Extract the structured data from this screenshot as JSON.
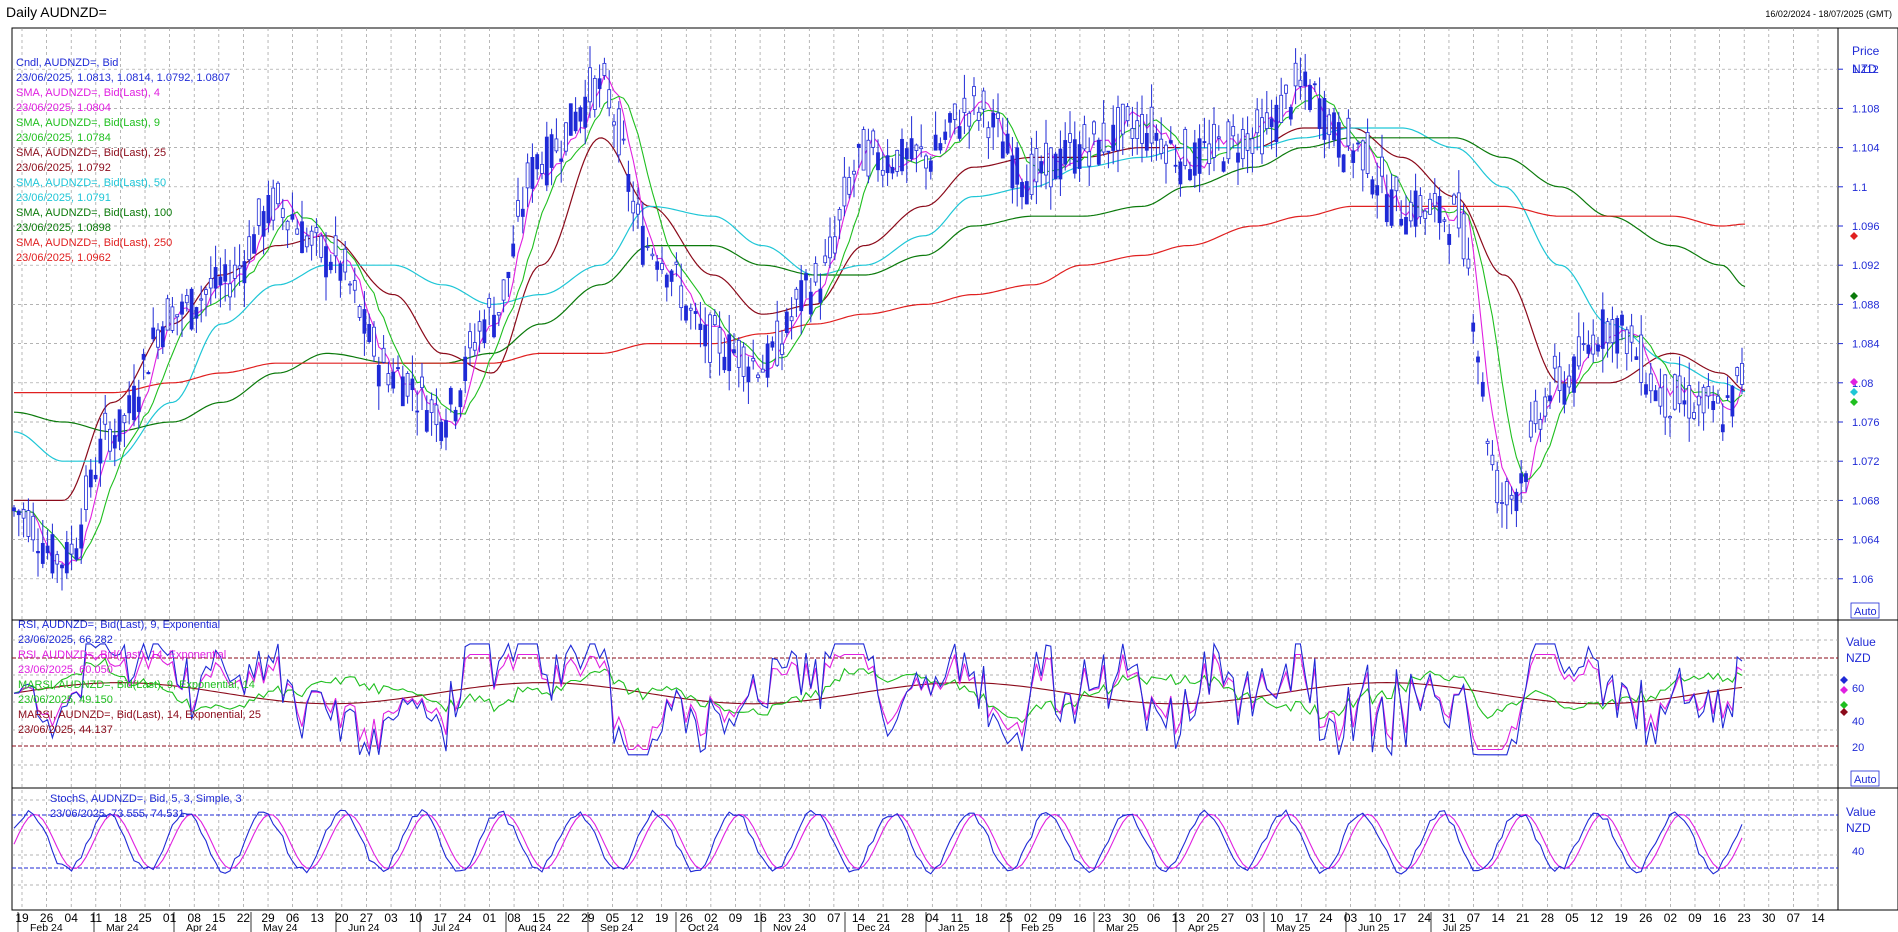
{
  "header": {
    "title": "Daily AUDNZD=",
    "range": "16/02/2024 - 18/07/2025 (GMT)"
  },
  "colors": {
    "candle": "#1f2ad6",
    "sma4": "#e020e0",
    "sma9": "#1fbf1f",
    "sma25": "#8b0a1a",
    "sma50": "#1fc6d6",
    "sma100": "#0b7a0b",
    "sma250": "#e02020",
    "grid": "#9a9a9a",
    "axis_text": "#1f2ad6"
  },
  "price_panel": {
    "axis_title_1": "Price",
    "axis_title_2": "NZD",
    "auto": "Auto",
    "ticks": [
      "1.112",
      "1.108",
      "1.104",
      "1.1",
      "1.096",
      "1.092",
      "1.088",
      "1.084",
      "1.08",
      "1.076",
      "1.072",
      "1.068",
      "1.064",
      "1.06"
    ],
    "legend": [
      {
        "t1": "Cndl, AUDNZD=, Bid",
        "t2": "23/06/2025, 1.0813, 1.0814, 1.0792, 1.0807"
      },
      {
        "t1": "SMA, AUDNZD=, Bid(Last), 4",
        "t2": "23/06/2025, 1.0804"
      },
      {
        "t1": "SMA, AUDNZD=, Bid(Last), 9",
        "t2": "23/06/2025, 1.0784"
      },
      {
        "t1": "SMA, AUDNZD=, Bid(Last), 25",
        "t2": "23/06/2025, 1.0792"
      },
      {
        "t1": "SMA, AUDNZD=, Bid(Last), 50",
        "t2": "23/06/2025, 1.0791"
      },
      {
        "t1": "SMA, AUDNZD=, Bid(Last), 100",
        "t2": "23/06/2025, 1.0898"
      },
      {
        "t1": "SMA, AUDNZD=, Bid(Last), 250",
        "t2": "23/06/2025, 1.0962"
      }
    ]
  },
  "rsi_panel": {
    "axis_title_1": "Value",
    "axis_title_2": "NZD",
    "auto": "Auto",
    "ticks": [
      "60",
      "40",
      "20"
    ],
    "legend": [
      {
        "t1": "RSI, AUDNZD=, Bid(Last), 9, Exponential",
        "t2": "23/06/2025, 66.282"
      },
      {
        "t1": "RSI, AUDNZD=, Bid(Last), 14, Exponential",
        "t2": "23/06/2025, 60.050"
      },
      {
        "t1": "MARSI, AUDNZD=, Bid(Last), 9, Exponential, 14",
        "t2": "23/06/2025, 49.150"
      },
      {
        "t1": "MARSI, AUDNZD=, Bid(Last), 14, Exponential, 25",
        "t2": "23/06/2025, 44.137"
      }
    ]
  },
  "stoch_panel": {
    "axis_title_1": "Value",
    "axis_title_2": "NZD",
    "ticks": [
      "40"
    ],
    "legend": [
      {
        "t1": "StochS, AUDNZD=, Bid,  5, 3, Simple, 3",
        "t2": "23/06/2025, 73.555, 74.531"
      }
    ]
  },
  "x_axis": {
    "day_labels": [
      "19",
      "26",
      "04",
      "11",
      "18",
      "25",
      "01",
      "08",
      "15",
      "22",
      "29",
      "06",
      "13",
      "20",
      "27",
      "03",
      "10",
      "17",
      "24",
      "01",
      "08",
      "15",
      "22",
      "29",
      "05",
      "12",
      "19",
      "26",
      "02",
      "09",
      "16",
      "23",
      "30",
      "07",
      "14",
      "21",
      "28",
      "04",
      "11",
      "18",
      "25",
      "02",
      "09",
      "16",
      "23",
      "30",
      "06",
      "13",
      "20",
      "27",
      "03",
      "10",
      "17",
      "24",
      "03",
      "10",
      "17",
      "24",
      "31",
      "07",
      "14",
      "21",
      "28",
      "05",
      "12",
      "19",
      "26",
      "02",
      "09",
      "16",
      "23",
      "30",
      "07",
      "14"
    ],
    "month_labels": [
      "Feb 24",
      "Mar 24",
      "Apr 24",
      "May 24",
      "Jun 24",
      "Jul 24",
      "Aug 24",
      "Sep 24",
      "Oct 24",
      "Nov 24",
      "Dec 24",
      "Jan 25",
      "Feb 25",
      "Mar 25",
      "Apr 25",
      "May 25",
      "Jun 25",
      "Jul 25"
    ]
  },
  "chart_data": {
    "type": "line",
    "title": "Daily AUDNZD=",
    "x_label": "",
    "y_label": "Price NZD",
    "ylim": [
      1.056,
      1.116
    ],
    "x_range": [
      "2024-02-16",
      "2025-07-18"
    ],
    "last_date": "2025-06-23",
    "x": [
      "2024-02-16",
      "2024-03-01",
      "2024-03-15",
      "2024-04-01",
      "2024-04-15",
      "2024-05-01",
      "2024-05-15",
      "2024-06-03",
      "2024-06-17",
      "2024-07-01",
      "2024-07-15",
      "2024-08-01",
      "2024-08-15",
      "2024-09-02",
      "2024-09-16",
      "2024-10-01",
      "2024-10-15",
      "2024-11-01",
      "2024-11-15",
      "2024-12-02",
      "2024-12-16",
      "2025-01-02",
      "2025-01-15",
      "2025-02-03",
      "2025-02-17",
      "2025-03-03",
      "2025-03-17",
      "2025-04-01",
      "2025-04-15",
      "2025-05-01",
      "2025-05-15",
      "2025-06-02",
      "2025-06-16",
      "2025-06-23"
    ],
    "series": [
      {
        "name": "Cndl, AUDNZD=, Bid",
        "values": [
          1.067,
          1.062,
          1.075,
          1.087,
          1.09,
          1.098,
          1.093,
          1.081,
          1.077,
          1.087,
          1.103,
          1.11,
          1.094,
          1.084,
          1.082,
          1.09,
          1.103,
          1.103,
          1.108,
          1.101,
          1.104,
          1.106,
          1.103,
          1.105,
          1.11,
          1.104,
          1.098,
          1.097,
          1.068,
          1.08,
          1.086,
          1.078,
          1.077,
          1.0807
        ]
      },
      {
        "name": "SMA, AUDNZD=, Bid(Last), 25",
        "values": [
          1.068,
          1.068,
          1.078,
          1.086,
          1.091,
          1.094,
          1.095,
          1.089,
          1.083,
          1.081,
          1.092,
          1.105,
          1.098,
          1.091,
          1.087,
          1.088,
          1.094,
          1.098,
          1.102,
          1.103,
          1.103,
          1.104,
          1.104,
          1.104,
          1.106,
          1.106,
          1.103,
          1.099,
          1.091,
          1.08,
          1.08,
          1.083,
          1.081,
          1.0792
        ]
      },
      {
        "name": "SMA, AUDNZD=, Bid(Last), 50",
        "values": [
          1.075,
          1.072,
          1.072,
          1.078,
          1.086,
          1.09,
          1.092,
          1.092,
          1.09,
          1.088,
          1.089,
          1.092,
          1.098,
          1.097,
          1.094,
          1.091,
          1.092,
          1.095,
          1.099,
          1.1,
          1.102,
          1.103,
          1.104,
          1.104,
          1.105,
          1.106,
          1.106,
          1.104,
          1.1,
          1.092,
          1.086,
          1.082,
          1.08,
          1.0791
        ]
      },
      {
        "name": "SMA, AUDNZD=, Bid(Last), 100",
        "values": [
          1.077,
          1.076,
          1.075,
          1.076,
          1.078,
          1.081,
          1.083,
          1.082,
          1.082,
          1.083,
          1.086,
          1.09,
          1.094,
          1.094,
          1.092,
          1.091,
          1.091,
          1.093,
          1.096,
          1.097,
          1.097,
          1.098,
          1.1,
          1.102,
          1.104,
          1.105,
          1.105,
          1.105,
          1.103,
          1.1,
          1.097,
          1.094,
          1.092,
          1.0898
        ]
      },
      {
        "name": "SMA, AUDNZD=, Bid(Last), 250",
        "values": [
          1.079,
          1.079,
          1.079,
          1.08,
          1.081,
          1.082,
          1.082,
          1.082,
          1.082,
          1.082,
          1.083,
          1.083,
          1.084,
          1.084,
          1.085,
          1.086,
          1.087,
          1.088,
          1.089,
          1.09,
          1.092,
          1.093,
          1.094,
          1.096,
          1.097,
          1.098,
          1.098,
          1.098,
          1.098,
          1.097,
          1.097,
          1.097,
          1.096,
          1.0962
        ]
      }
    ]
  }
}
